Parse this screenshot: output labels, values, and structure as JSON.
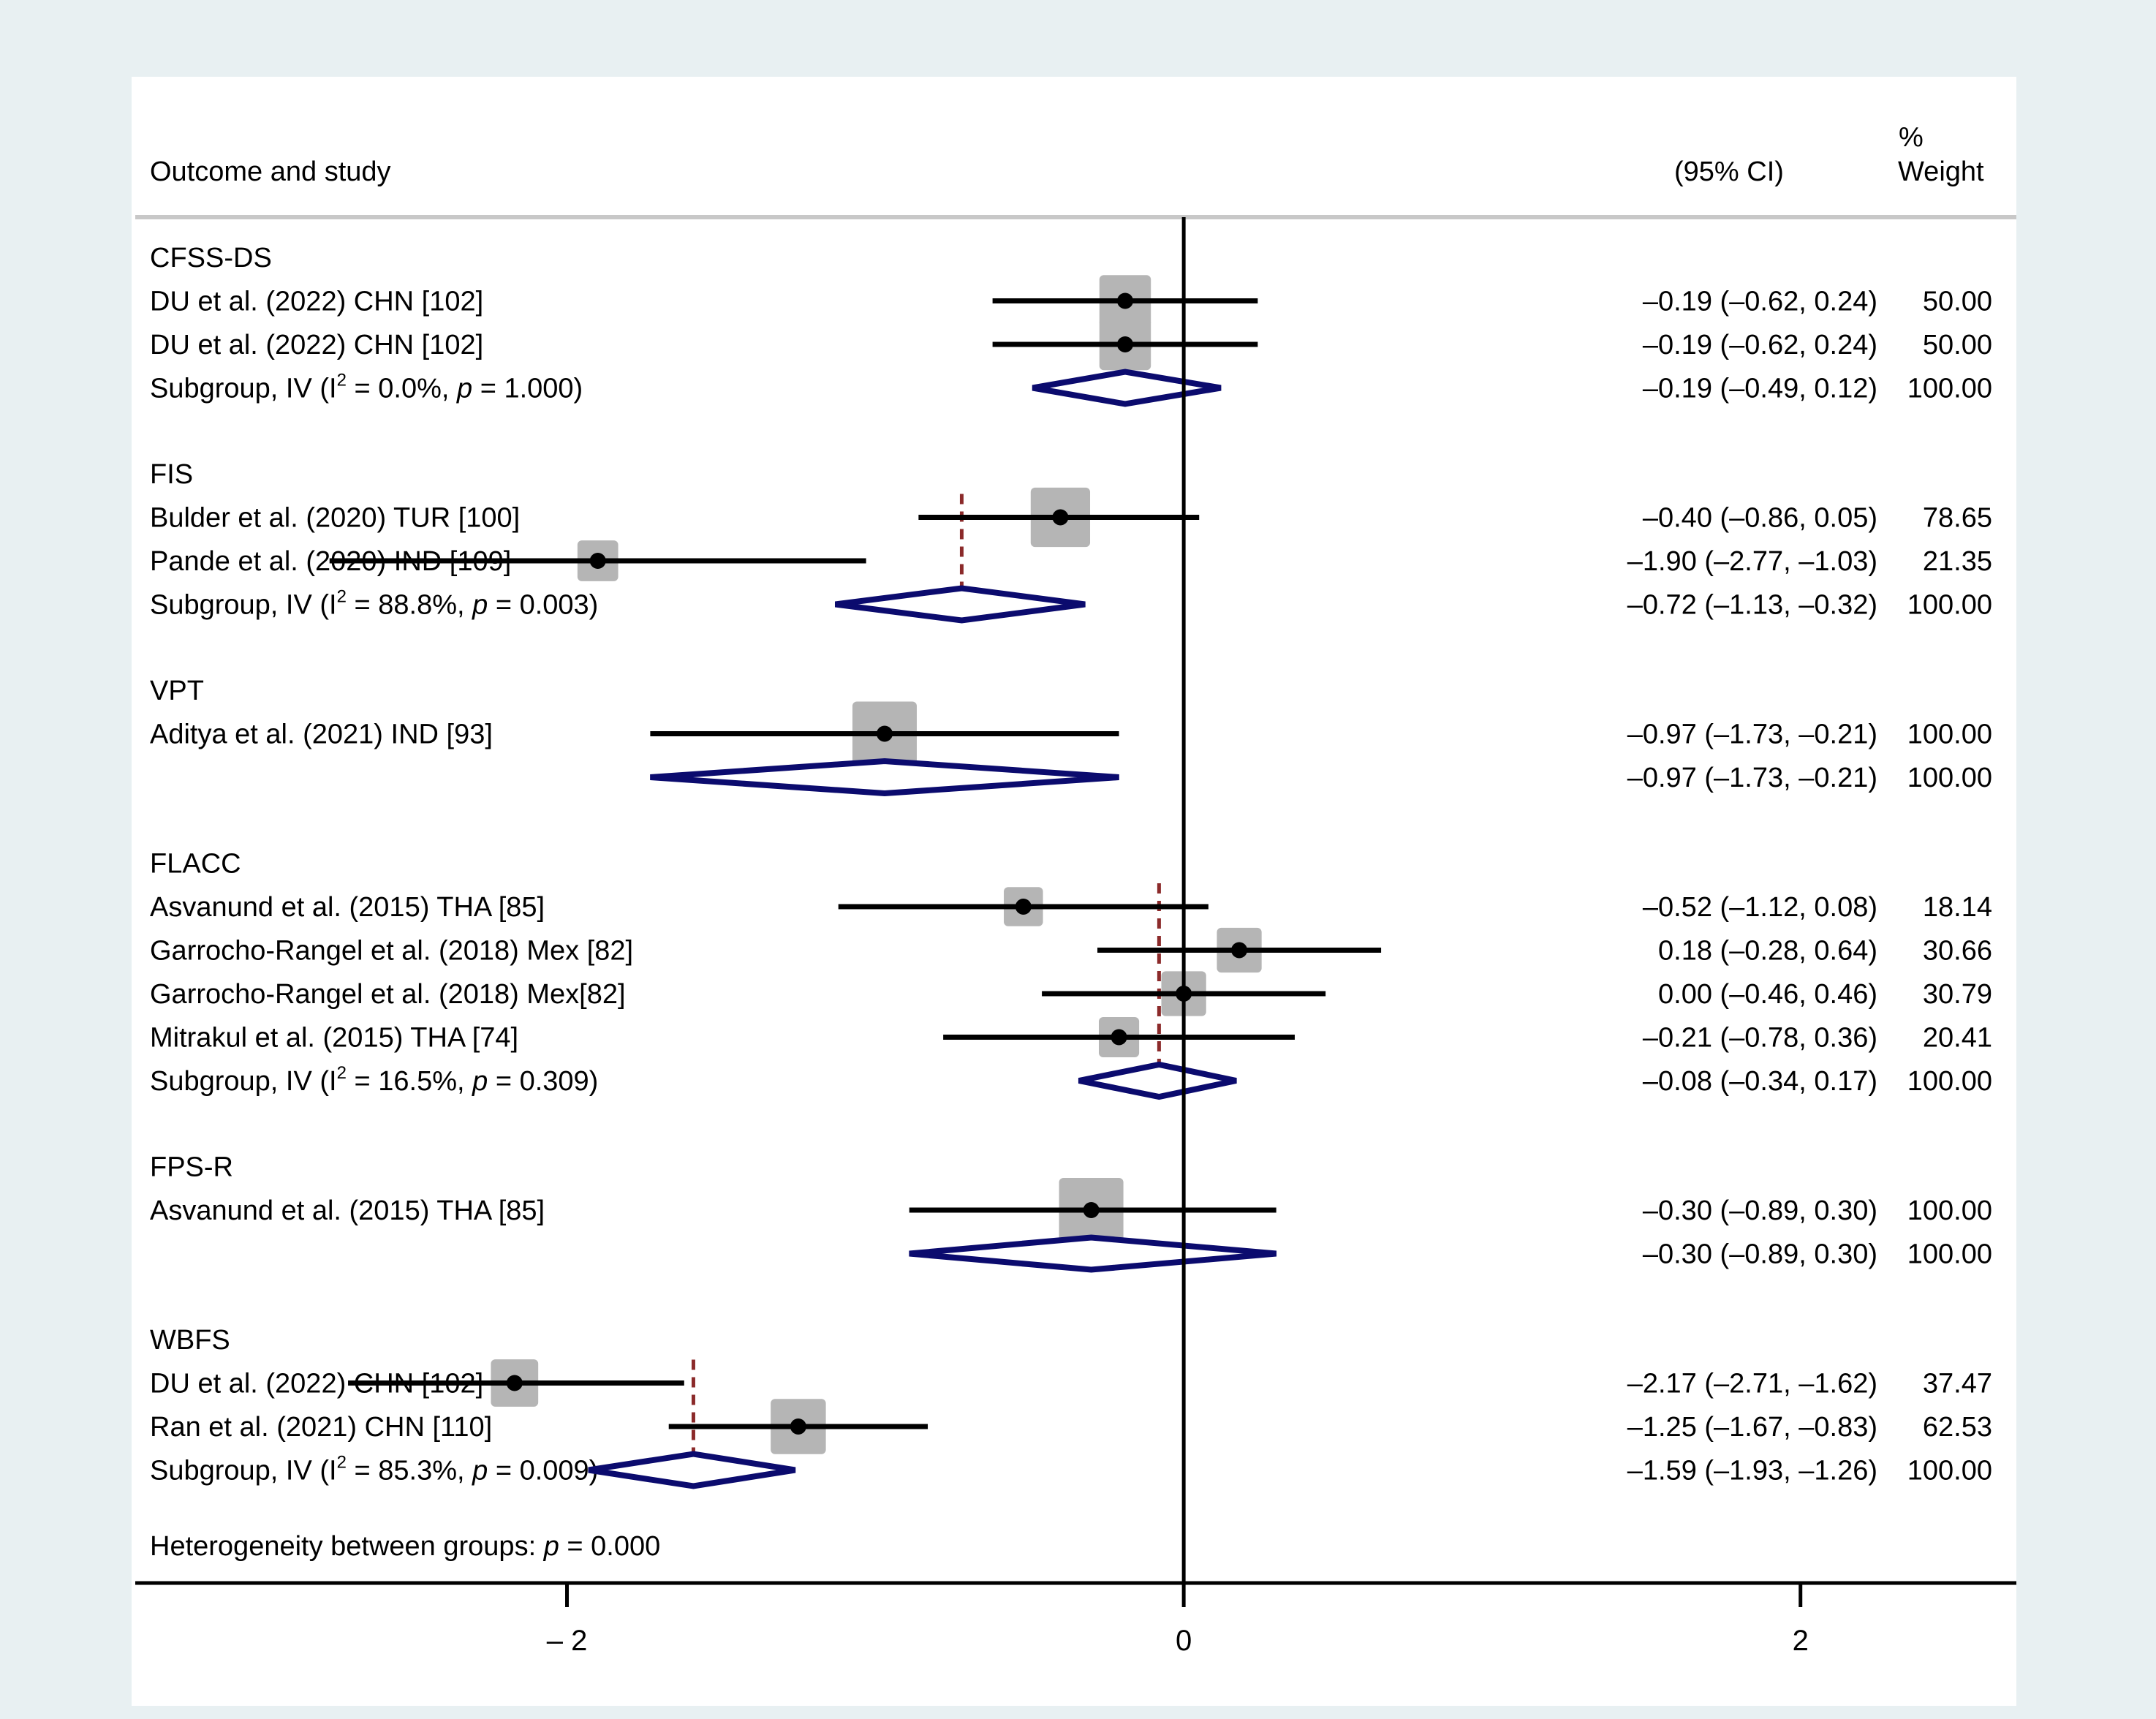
{
  "chart_data": {
    "type": "forest",
    "header": {
      "study_col": "Outcome and study",
      "ci_col": "(95% CI)",
      "weight_col_line1": "%",
      "weight_col_line2": "Weight"
    },
    "xlim": [
      -3.4,
      2.7
    ],
    "xticks": [
      -2,
      0,
      2
    ],
    "xtick_labels": [
      "– 2",
      "0",
      "2"
    ],
    "null_line": 0,
    "colors": {
      "frame": "#ffffff",
      "outer": "#e8f0f2",
      "diamond": "#0b0b6e",
      "box": "#b5b5b5",
      "ci_line": "#000000",
      "pooled_line": "#8b2a2a",
      "separator": "#c8c8c8"
    },
    "groups": [
      {
        "name": "CFSS-DS",
        "studies": [
          {
            "label": "DU et al. (2022) CHN [102]",
            "est": -0.19,
            "lo": -0.62,
            "hi": 0.24,
            "weight": 50.0,
            "ci_text": "–0.19 (–0.62, 0.24)",
            "w_text": "50.00"
          },
          {
            "label": "DU et al. (2022) CHN [102]",
            "est": -0.19,
            "lo": -0.62,
            "hi": 0.24,
            "weight": 50.0,
            "ci_text": "–0.19 (–0.62, 0.24)",
            "w_text": "50.00"
          }
        ],
        "subgroup": {
          "label_pre": "Subgroup, IV (I",
          "sup": "2",
          "label_mid": " = 0.0%, ",
          "p": "p",
          "label_post": " = 1.000)",
          "est": -0.19,
          "lo": -0.49,
          "hi": 0.12,
          "ci_text": "–0.19 (–0.49, 0.12)",
          "w_text": "100.00"
        }
      },
      {
        "name": "FIS",
        "studies": [
          {
            "label": "Bulder et al. (2020) TUR [100]",
            "est": -0.4,
            "lo": -0.86,
            "hi": 0.05,
            "weight": 78.65,
            "ci_text": "–0.40 (–0.86, 0.05)",
            "w_text": "78.65"
          },
          {
            "label": "Pande et al. (2020) IND [109]",
            "est": -1.9,
            "lo": -2.77,
            "hi": -1.03,
            "weight": 21.35,
            "ci_text": "–1.90 (–2.77, –1.03)",
            "w_text": "21.35"
          }
        ],
        "subgroup": {
          "label_pre": "Subgroup, IV (I",
          "sup": "2",
          "label_mid": " = 88.8%, ",
          "p": "p",
          "label_post": " = 0.003)",
          "est": -0.72,
          "lo": -1.13,
          "hi": -0.32,
          "ci_text": "–0.72 (–1.13, –0.32)",
          "w_text": "100.00"
        }
      },
      {
        "name": "VPT",
        "studies": [
          {
            "label": "Aditya et al. (2021) IND [93]",
            "est": -0.97,
            "lo": -1.73,
            "hi": -0.21,
            "weight": 100.0,
            "ci_text": "–0.97 (–1.73, –0.21)",
            "w_text": "100.00"
          }
        ],
        "subgroup": {
          "label_pre": "",
          "sup": "",
          "label_mid": "",
          "p": "",
          "label_post": "",
          "est": -0.97,
          "lo": -1.73,
          "hi": -0.21,
          "ci_text": "–0.97 (–1.73, –0.21)",
          "w_text": "100.00"
        }
      },
      {
        "name": "FLACC",
        "studies": [
          {
            "label": "Asvanund et al. (2015) THA [85]",
            "est": -0.52,
            "lo": -1.12,
            "hi": 0.08,
            "weight": 18.14,
            "ci_text": "–0.52 (–1.12, 0.08)",
            "w_text": "18.14"
          },
          {
            "label": "Garrocho-Rangel et al. (2018) Mex [82]",
            "est": 0.18,
            "lo": -0.28,
            "hi": 0.64,
            "weight": 30.66,
            "ci_text": "0.18 (–0.28, 0.64)",
            "w_text": "30.66"
          },
          {
            "label": "Garrocho-Rangel et al. (2018) Mex[82]",
            "est": 0.0,
            "lo": -0.46,
            "hi": 0.46,
            "weight": 30.79,
            "ci_text": "0.00 (–0.46, 0.46)",
            "w_text": "30.79"
          },
          {
            "label": "Mitrakul et al. (2015) THA [74]",
            "est": -0.21,
            "lo": -0.78,
            "hi": 0.36,
            "weight": 20.41,
            "ci_text": "–0.21 (–0.78, 0.36)",
            "w_text": "20.41"
          }
        ],
        "subgroup": {
          "label_pre": "Subgroup, IV (I",
          "sup": "2",
          "label_mid": " = 16.5%, ",
          "p": "p",
          "label_post": " = 0.309)",
          "est": -0.08,
          "lo": -0.34,
          "hi": 0.17,
          "ci_text": "–0.08 (–0.34, 0.17)",
          "w_text": "100.00"
        }
      },
      {
        "name": "FPS-R",
        "studies": [
          {
            "label": "Asvanund et al. (2015) THA [85]",
            "est": -0.3,
            "lo": -0.89,
            "hi": 0.3,
            "weight": 100.0,
            "ci_text": "–0.30 (–0.89, 0.30)",
            "w_text": "100.00"
          }
        ],
        "subgroup": {
          "label_pre": "",
          "sup": "",
          "label_mid": "",
          "p": "",
          "label_post": "",
          "est": -0.3,
          "lo": -0.89,
          "hi": 0.3,
          "ci_text": "–0.30 (–0.89, 0.30)",
          "w_text": "100.00"
        }
      },
      {
        "name": "WBFS",
        "studies": [
          {
            "label": "DU et al. (2022) CHN [102]",
            "est": -2.17,
            "lo": -2.71,
            "hi": -1.62,
            "weight": 37.47,
            "ci_text": "–2.17 (–2.71, –1.62)",
            "w_text": "37.47"
          },
          {
            "label": "Ran et al. (2021) CHN [110]",
            "est": -1.25,
            "lo": -1.67,
            "hi": -0.83,
            "weight": 62.53,
            "ci_text": "–1.25 (–1.67, –0.83)",
            "w_text": "62.53"
          }
        ],
        "subgroup": {
          "label_pre": "Subgroup, IV (I",
          "sup": "2",
          "label_mid": " = 85.3%, ",
          "p": "p",
          "label_post": " = 0.009)",
          "est": -1.59,
          "lo": -1.93,
          "hi": -1.26,
          "ci_text": "–1.59 (–1.93, –1.26)",
          "w_text": "100.00"
        }
      }
    ],
    "heterogeneity": {
      "pre": "Heterogeneity between groups: ",
      "p": "p",
      "post": " = 0.000"
    }
  }
}
